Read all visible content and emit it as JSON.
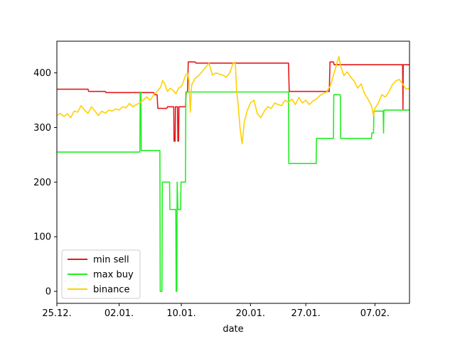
{
  "chart_data": {
    "type": "line",
    "title": "",
    "xlabel": "date",
    "ylabel": "",
    "x_tick_labels": [
      "25.12.",
      "02.01.",
      "10.01.",
      "20.01.",
      "27.01.",
      "07.02."
    ],
    "y_ticks": [
      0,
      100,
      200,
      300,
      400
    ],
    "xlim_days": [
      0,
      51
    ],
    "ylim": [
      -22,
      458
    ],
    "grid": false,
    "legend_position": "lower-left",
    "series": [
      {
        "name": "min sell",
        "color": "#e31a1c",
        "points": [
          [
            0,
            370
          ],
          [
            4.5,
            370
          ],
          [
            4.6,
            366
          ],
          [
            7.0,
            366
          ],
          [
            7.1,
            364
          ],
          [
            14.0,
            364
          ],
          [
            14.1,
            360
          ],
          [
            14.5,
            360
          ],
          [
            14.6,
            335
          ],
          [
            15.9,
            335
          ],
          [
            16.0,
            338
          ],
          [
            16.9,
            338
          ],
          [
            16.95,
            275
          ],
          [
            17.1,
            275
          ],
          [
            17.15,
            338
          ],
          [
            17.45,
            338
          ],
          [
            17.5,
            275
          ],
          [
            17.6,
            275
          ],
          [
            17.65,
            338
          ],
          [
            18.6,
            338
          ],
          [
            18.7,
            365
          ],
          [
            18.9,
            365
          ],
          [
            19.0,
            420
          ],
          [
            20.0,
            420
          ],
          [
            20.1,
            418
          ],
          [
            33.5,
            418
          ],
          [
            33.6,
            366
          ],
          [
            39.4,
            366
          ],
          [
            39.5,
            420
          ],
          [
            40.0,
            420
          ],
          [
            40.1,
            415
          ],
          [
            50.0,
            415
          ],
          [
            50.05,
            333
          ],
          [
            50.1,
            415
          ],
          [
            51,
            415
          ]
        ]
      },
      {
        "name": "max buy",
        "color": "#22ee22",
        "points": [
          [
            0,
            255
          ],
          [
            12.0,
            255
          ],
          [
            12.05,
            365
          ],
          [
            12.15,
            365
          ],
          [
            12.2,
            258
          ],
          [
            14.9,
            258
          ],
          [
            14.95,
            0
          ],
          [
            15.2,
            0
          ],
          [
            15.25,
            200
          ],
          [
            16.3,
            200
          ],
          [
            16.35,
            150
          ],
          [
            17.2,
            150
          ],
          [
            17.25,
            0
          ],
          [
            17.35,
            0
          ],
          [
            17.4,
            200
          ],
          [
            17.5,
            150
          ],
          [
            17.9,
            150
          ],
          [
            17.95,
            200
          ],
          [
            18.6,
            200
          ],
          [
            18.65,
            365
          ],
          [
            33.5,
            365
          ],
          [
            33.55,
            234
          ],
          [
            37.5,
            234
          ],
          [
            37.55,
            280
          ],
          [
            40.0,
            280
          ],
          [
            40.05,
            360
          ],
          [
            41.0,
            360
          ],
          [
            41.05,
            280
          ],
          [
            45.5,
            280
          ],
          [
            45.55,
            290
          ],
          [
            45.8,
            290
          ],
          [
            45.85,
            330
          ],
          [
            47.2,
            330
          ],
          [
            47.25,
            290
          ],
          [
            47.3,
            332
          ],
          [
            51,
            332
          ]
        ]
      },
      {
        "name": "binance",
        "color": "#ffd000",
        "points": [
          [
            0,
            322
          ],
          [
            0.5,
            326
          ],
          [
            1.0,
            320
          ],
          [
            1.5,
            325
          ],
          [
            2.0,
            318
          ],
          [
            2.5,
            330
          ],
          [
            3.0,
            328
          ],
          [
            3.5,
            340
          ],
          [
            4.0,
            332
          ],
          [
            4.5,
            326
          ],
          [
            5.0,
            338
          ],
          [
            5.5,
            330
          ],
          [
            6.0,
            322
          ],
          [
            6.5,
            330
          ],
          [
            7.0,
            326
          ],
          [
            7.5,
            332
          ],
          [
            8.0,
            330
          ],
          [
            8.5,
            334
          ],
          [
            9.0,
            332
          ],
          [
            9.5,
            338
          ],
          [
            10.0,
            336
          ],
          [
            10.5,
            344
          ],
          [
            11.0,
            338
          ],
          [
            11.5,
            342
          ],
          [
            12.0,
            345
          ],
          [
            12.5,
            350
          ],
          [
            13.0,
            356
          ],
          [
            13.5,
            350
          ],
          [
            14.0,
            360
          ],
          [
            14.5,
            366
          ],
          [
            15.0,
            374
          ],
          [
            15.3,
            386
          ],
          [
            15.6,
            380
          ],
          [
            16.0,
            366
          ],
          [
            16.4,
            372
          ],
          [
            16.8,
            368
          ],
          [
            17.2,
            362
          ],
          [
            17.6,
            372
          ],
          [
            18.0,
            375
          ],
          [
            18.3,
            384
          ],
          [
            18.6,
            395
          ],
          [
            18.9,
            400
          ],
          [
            19.1,
            385
          ],
          [
            19.3,
            328
          ],
          [
            19.5,
            378
          ],
          [
            20.0,
            390
          ],
          [
            20.5,
            395
          ],
          [
            21.0,
            402
          ],
          [
            21.5,
            410
          ],
          [
            22.0,
            418
          ],
          [
            22.5,
            396
          ],
          [
            23.0,
            400
          ],
          [
            23.5,
            398
          ],
          [
            24.0,
            396
          ],
          [
            24.5,
            392
          ],
          [
            25.0,
            400
          ],
          [
            25.5,
            418
          ],
          [
            25.8,
            420
          ],
          [
            26.0,
            365
          ],
          [
            26.2,
            345
          ],
          [
            26.5,
            298
          ],
          [
            26.8,
            270
          ],
          [
            27.1,
            310
          ],
          [
            27.5,
            330
          ],
          [
            28.0,
            345
          ],
          [
            28.5,
            350
          ],
          [
            29.0,
            325
          ],
          [
            29.5,
            318
          ],
          [
            30.0,
            330
          ],
          [
            30.5,
            338
          ],
          [
            31.0,
            335
          ],
          [
            31.5,
            345
          ],
          [
            32.0,
            342
          ],
          [
            32.5,
            340
          ],
          [
            33.0,
            350
          ],
          [
            33.5,
            346
          ],
          [
            34.0,
            352
          ],
          [
            34.5,
            342
          ],
          [
            35.0,
            355
          ],
          [
            35.5,
            345
          ],
          [
            36.0,
            350
          ],
          [
            36.5,
            342
          ],
          [
            37.0,
            348
          ],
          [
            37.5,
            352
          ],
          [
            38.0,
            358
          ],
          [
            38.5,
            362
          ],
          [
            39.0,
            365
          ],
          [
            39.5,
            375
          ],
          [
            40.0,
            395
          ],
          [
            40.5,
            418
          ],
          [
            40.8,
            430
          ],
          [
            41.0,
            415
          ],
          [
            41.5,
            395
          ],
          [
            42.0,
            402
          ],
          [
            42.5,
            392
          ],
          [
            43.0,
            385
          ],
          [
            43.5,
            372
          ],
          [
            44.0,
            380
          ],
          [
            44.5,
            362
          ],
          [
            45.0,
            352
          ],
          [
            45.5,
            340
          ],
          [
            45.8,
            322
          ],
          [
            46.0,
            335
          ],
          [
            46.5,
            345
          ],
          [
            47.0,
            360
          ],
          [
            47.5,
            356
          ],
          [
            48.0,
            365
          ],
          [
            48.5,
            378
          ],
          [
            49.0,
            385
          ],
          [
            49.5,
            388
          ],
          [
            50.0,
            380
          ],
          [
            50.5,
            370
          ],
          [
            51,
            372
          ]
        ]
      }
    ]
  }
}
